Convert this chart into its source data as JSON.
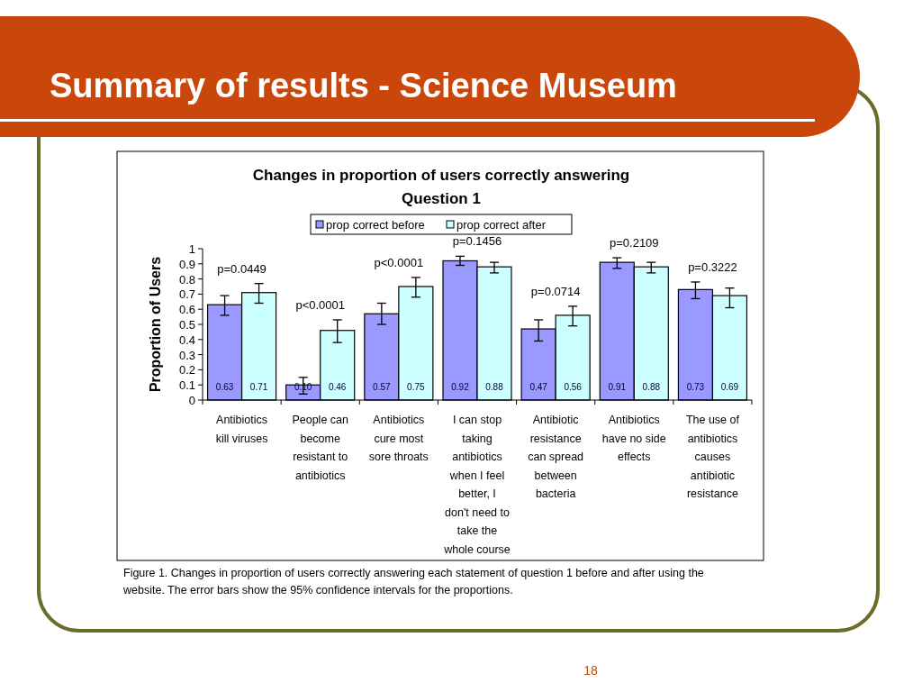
{
  "chart_data": {
    "type": "bar",
    "title": "Changes in proportion of users correctly answering Question 1",
    "ylabel": "Proportion of Users",
    "categories": [
      "Antibiotics kill viruses",
      "People can become resistant to antibiotics",
      "Antibiotics cure most sore throats",
      "I can stop taking antibiotics when I feel better, I don't need to take the whole course",
      "Antibiotic resistance can spread between bacteria",
      "Antibiotics have no side effects",
      "The use of antibiotics causes antibiotic resistance"
    ],
    "series": [
      {
        "name": "prop correct before",
        "color": "#9999ff",
        "values": [
          0.63,
          0.1,
          0.57,
          0.92,
          0.47,
          0.91,
          0.73
        ],
        "errors": [
          [
            0.56,
            0.69
          ],
          [
            0.04,
            0.15
          ],
          [
            0.5,
            0.64
          ],
          [
            0.89,
            0.95
          ],
          [
            0.39,
            0.53
          ],
          [
            0.87,
            0.94
          ],
          [
            0.67,
            0.78
          ]
        ],
        "value_labels": [
          "0.63",
          "0.10",
          "0.57",
          "0.92",
          "0.47",
          "0.91",
          "0.73"
        ]
      },
      {
        "name": "prop correct after",
        "color": "#ccffff",
        "values": [
          0.71,
          0.46,
          0.75,
          0.88,
          0.56,
          0.88,
          0.69
        ],
        "errors": [
          [
            0.64,
            0.77
          ],
          [
            0.38,
            0.53
          ],
          [
            0.68,
            0.81
          ],
          [
            0.84,
            0.91
          ],
          [
            0.49,
            0.62
          ],
          [
            0.84,
            0.91
          ],
          [
            0.61,
            0.74
          ]
        ],
        "value_labels": [
          "0.71",
          "0.46",
          "0.75",
          "0.88",
          "0.56",
          "0.88",
          "0.69"
        ]
      }
    ],
    "ylim": [
      0,
      1
    ],
    "yticks": [
      0,
      0.1,
      0.2,
      0.3,
      0.4,
      0.5,
      0.6,
      0.7,
      0.8,
      0.9,
      1
    ],
    "grid": false,
    "legend": "top",
    "annotations": [
      "p=0.0449",
      "p<0.0001",
      "p<0.0001",
      "p=0.1456",
      "p=0.0714",
      "p=0.2109",
      "p=0.3222",
      "Summary of results - Science Museum",
      "Figure 1. Changes in proportion of users correctly answering each statement of question 1 before and after using the website.  The error bars show the 95% confidence intervals for the proportions.",
      "18"
    ]
  }
}
